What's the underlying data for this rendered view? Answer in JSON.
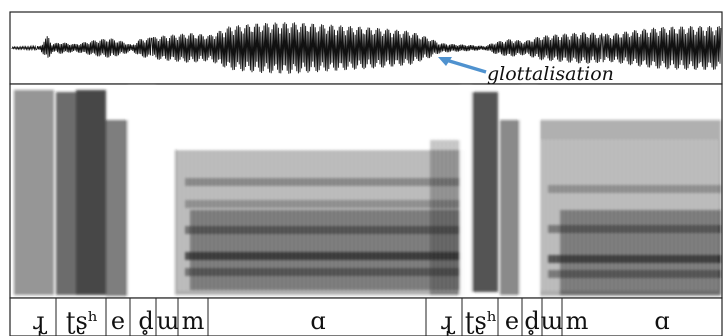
{
  "figure": {
    "annotation": "glottalisation",
    "colors": {
      "frame": "#222222",
      "waveform": "#111111",
      "arrow": "#4f92cf",
      "spectrogram_dark": "#1a1a1a",
      "spectrogram_light": "#ffffff"
    }
  },
  "segments": [
    {
      "label": "ɻ̩"
    },
    {
      "label": "ʈʂʰ"
    },
    {
      "label": "e"
    },
    {
      "label": "d̥"
    },
    {
      "label": "ɯ"
    },
    {
      "label": "m"
    },
    {
      "label": "ɑ"
    },
    {
      "label": "ɻ̩"
    },
    {
      "label": "ʈʂʰ"
    },
    {
      "label": "e"
    },
    {
      "label": "d̥"
    },
    {
      "label": "ɯ"
    },
    {
      "label": "m"
    },
    {
      "label": "ɑ"
    }
  ]
}
